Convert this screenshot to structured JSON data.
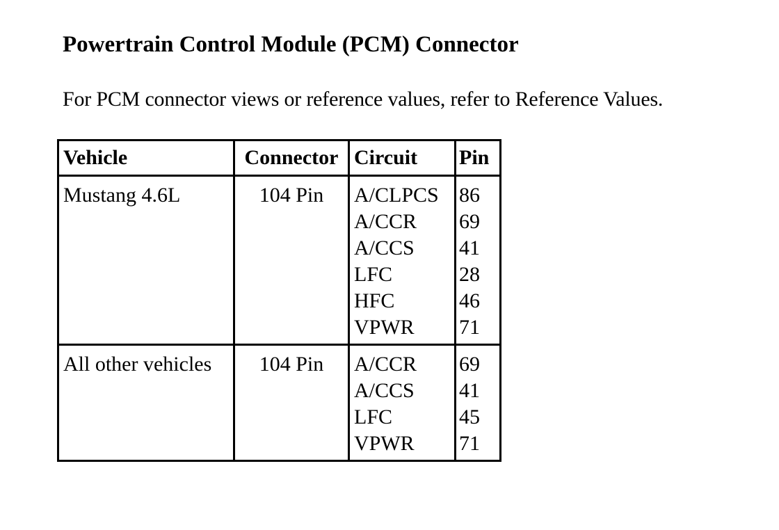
{
  "title": "Powertrain Control Module (PCM) Connector",
  "intro": "For PCM connector views or reference values, refer to Reference Values.",
  "table": {
    "headers": [
      "Vehicle",
      "Connector",
      "Circuit",
      "Pin"
    ],
    "rows": [
      {
        "vehicle": "Mustang 4.6L",
        "connector": "104 Pin",
        "circuits": [
          "A/CLPCS",
          "A/CCR",
          "A/CCS",
          "LFC",
          "HFC",
          "VPWR"
        ],
        "pins": [
          "86",
          "69",
          "41",
          "28",
          "46",
          "71"
        ]
      },
      {
        "vehicle": "All other vehicles",
        "connector": "104 Pin",
        "circuits": [
          "A/CCR",
          "A/CCS",
          "LFC",
          "VPWR"
        ],
        "pins": [
          "69",
          "41",
          "45",
          "71"
        ]
      }
    ]
  }
}
